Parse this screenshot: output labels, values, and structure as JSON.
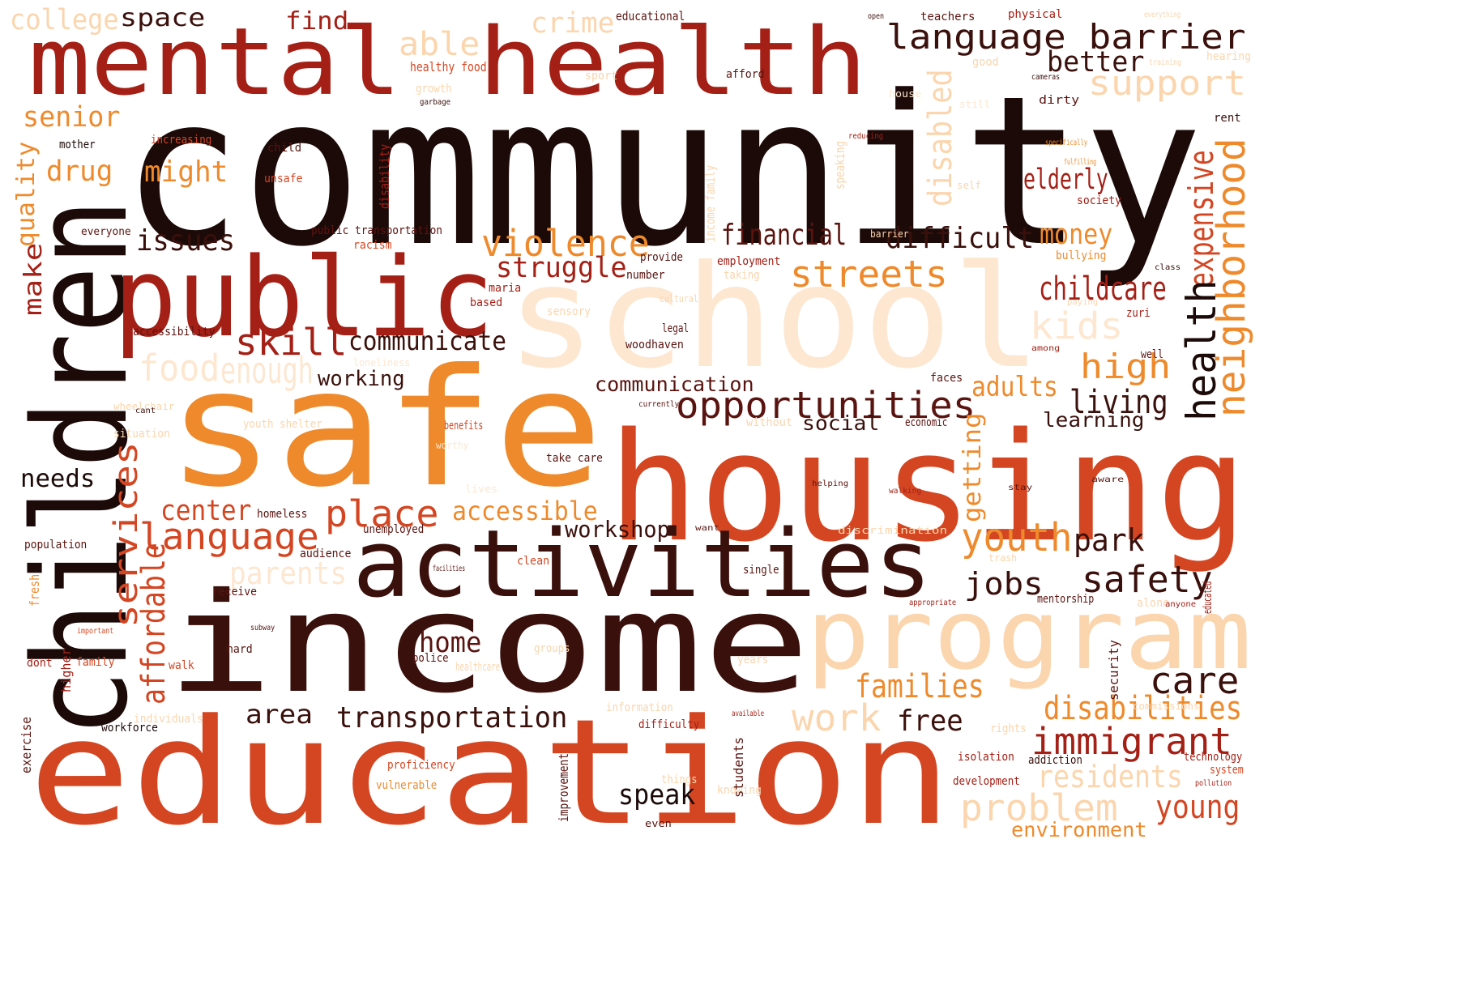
{
  "palette": {
    "dark": "#1c0a08",
    "maroon": "#5a1410",
    "red": "#a42016",
    "red_orange": "#d44622",
    "orange": "#ee8a2c",
    "peach": "#fbd5ad",
    "pale": "#fde7d0"
  },
  "words": [
    {
      "text": "community",
      "color": "#1c0a08"
    },
    {
      "text": "mental",
      "color": "#a42016"
    },
    {
      "text": "health",
      "color": "#a42016"
    },
    {
      "text": "children",
      "color": "#1c0a08"
    },
    {
      "text": "public",
      "color": "#a42016"
    },
    {
      "text": "school",
      "color": "#fde7d0"
    },
    {
      "text": "safe",
      "color": "#ee8a2c"
    },
    {
      "text": "housing",
      "color": "#d44622"
    },
    {
      "text": "activities",
      "color": "#3a100c"
    },
    {
      "text": "income",
      "color": "#3a100c"
    },
    {
      "text": "program",
      "color": "#fbd5ad"
    },
    {
      "text": "education",
      "color": "#d44622"
    },
    {
      "text": "college",
      "color": "#fbd5ad"
    },
    {
      "text": "space",
      "color": "#3a100c"
    },
    {
      "text": "find",
      "color": "#a42016"
    },
    {
      "text": "able",
      "color": "#fbd5ad"
    },
    {
      "text": "crime",
      "color": "#fbd5ad"
    },
    {
      "text": "language barrier",
      "color": "#3a100c"
    },
    {
      "text": "better",
      "color": "#3a100c"
    },
    {
      "text": "support",
      "color": "#fbd5ad"
    },
    {
      "text": "senior",
      "color": "#ee8a2c"
    },
    {
      "text": "drug",
      "color": "#ee8a2c"
    },
    {
      "text": "might",
      "color": "#ee8a2c"
    },
    {
      "text": "quality",
      "color": "#ee8a2c"
    },
    {
      "text": "make",
      "color": "#a42016"
    },
    {
      "text": "issues",
      "color": "#3a100c"
    },
    {
      "text": "violence",
      "color": "#ee8a2c"
    },
    {
      "text": "financial",
      "color": "#5a1410"
    },
    {
      "text": "difficult",
      "color": "#3a100c"
    },
    {
      "text": "money",
      "color": "#ee8a2c"
    },
    {
      "text": "disabled",
      "color": "#fbd5ad"
    },
    {
      "text": "elderly",
      "color": "#a42016"
    },
    {
      "text": "expensive",
      "color": "#d44622"
    },
    {
      "text": "neighborhood",
      "color": "#ee8a2c"
    },
    {
      "text": "health",
      "color": "#1c0a08"
    },
    {
      "text": "struggle",
      "color": "#a42016"
    },
    {
      "text": "streets",
      "color": "#ee8a2c"
    },
    {
      "text": "childcare",
      "color": "#a42016"
    },
    {
      "text": "kids",
      "color": "#fde7d0"
    },
    {
      "text": "skill",
      "color": "#a42016"
    },
    {
      "text": "communicate",
      "color": "#3a100c"
    },
    {
      "text": "food",
      "color": "#fde7d0"
    },
    {
      "text": "enough",
      "color": "#fde7d0"
    },
    {
      "text": "working",
      "color": "#3a100c"
    },
    {
      "text": "communication",
      "color": "#5a1410"
    },
    {
      "text": "opportunities",
      "color": "#5a1410"
    },
    {
      "text": "high",
      "color": "#ee8a2c"
    },
    {
      "text": "adults",
      "color": "#ee8a2c"
    },
    {
      "text": "living",
      "color": "#3a100c"
    },
    {
      "text": "learning",
      "color": "#3a100c"
    },
    {
      "text": "social",
      "color": "#3a100c"
    },
    {
      "text": "getting",
      "color": "#ee8a2c"
    },
    {
      "text": "services",
      "color": "#d44622"
    },
    {
      "text": "needs",
      "color": "#1c0a08"
    },
    {
      "text": "center",
      "color": "#d44622"
    },
    {
      "text": "place",
      "color": "#d44622"
    },
    {
      "text": "accessible",
      "color": "#ee8a2c"
    },
    {
      "text": "language",
      "color": "#d44622"
    },
    {
      "text": "workshop",
      "color": "#3a100c"
    },
    {
      "text": "youth",
      "color": "#ee8a2c"
    },
    {
      "text": "park",
      "color": "#3a100c"
    },
    {
      "text": "parents",
      "color": "#fde7d0"
    },
    {
      "text": "affordable",
      "color": "#d44622"
    },
    {
      "text": "jobs",
      "color": "#3a100c"
    },
    {
      "text": "safety",
      "color": "#3a100c"
    },
    {
      "text": "home",
      "color": "#5a1410"
    },
    {
      "text": "care",
      "color": "#3a100c"
    },
    {
      "text": "families",
      "color": "#ee8a2c"
    },
    {
      "text": "disabilities",
      "color": "#ee8a2c"
    },
    {
      "text": "area",
      "color": "#3a100c"
    },
    {
      "text": "transportation",
      "color": "#3a100c"
    },
    {
      "text": "work",
      "color": "#fbd5ad"
    },
    {
      "text": "free",
      "color": "#3a100c"
    },
    {
      "text": "immigrant",
      "color": "#a42016"
    },
    {
      "text": "residents",
      "color": "#fbd5ad"
    },
    {
      "text": "speak",
      "color": "#1c0a08"
    },
    {
      "text": "problem",
      "color": "#fbd5ad"
    },
    {
      "text": "young",
      "color": "#d44622"
    },
    {
      "text": "environment",
      "color": "#ee8a2c"
    },
    {
      "text": "educational",
      "color": "#5a1410"
    },
    {
      "text": "healthy food",
      "color": "#d44622"
    },
    {
      "text": "sport",
      "color": "#fbd5ad"
    },
    {
      "text": "growth",
      "color": "#fbd5ad"
    },
    {
      "text": "afford",
      "color": "#5a1410"
    },
    {
      "text": "teachers",
      "color": "#5a1410"
    },
    {
      "text": "physical",
      "color": "#a42016"
    },
    {
      "text": "good",
      "color": "#fbd5ad"
    },
    {
      "text": "hearing",
      "color": "#fbd5ad"
    },
    {
      "text": "dirty",
      "color": "#5a1410"
    },
    {
      "text": "rent",
      "color": "#3a100c"
    },
    {
      "text": "mother",
      "color": "#1c0a08"
    },
    {
      "text": "increasing",
      "color": "#d44622"
    },
    {
      "text": "child",
      "color": "#5a1410"
    },
    {
      "text": "unsafe",
      "color": "#d44622"
    },
    {
      "text": "everyone",
      "color": "#5a1410"
    },
    {
      "text": "public transportation",
      "color": "#5a1410"
    },
    {
      "text": "racism",
      "color": "#d44622"
    },
    {
      "text": "disability",
      "color": "#a42016"
    },
    {
      "text": "income family",
      "color": "#fbd5ad"
    },
    {
      "text": "speaking",
      "color": "#fbd5ad"
    },
    {
      "text": "employment",
      "color": "#a42016"
    },
    {
      "text": "provide",
      "color": "#5a1410"
    },
    {
      "text": "number",
      "color": "#5a1410"
    },
    {
      "text": "taking",
      "color": "#fbd5ad"
    },
    {
      "text": "bullying",
      "color": "#ee8a2c"
    },
    {
      "text": "society",
      "color": "#a42016"
    },
    {
      "text": "accessibility",
      "color": "#5a1410"
    },
    {
      "text": "maria",
      "color": "#a42016"
    },
    {
      "text": "based",
      "color": "#a42016"
    },
    {
      "text": "sensory",
      "color": "#fbd5ad"
    },
    {
      "text": "legal",
      "color": "#5a1410"
    },
    {
      "text": "woodhaven",
      "color": "#5a1410"
    },
    {
      "text": "zuri",
      "color": "#a42016"
    },
    {
      "text": "well",
      "color": "#5a1410"
    },
    {
      "text": "faces",
      "color": "#5a1410"
    },
    {
      "text": "youth shelter",
      "color": "#fbd5ad"
    },
    {
      "text": "benefits",
      "color": "#d44622"
    },
    {
      "text": "without",
      "color": "#fbd5ad"
    },
    {
      "text": "economic",
      "color": "#5a1410"
    },
    {
      "text": "situation",
      "color": "#fbd5ad"
    },
    {
      "text": "take care",
      "color": "#5a1410"
    },
    {
      "text": "homeless",
      "color": "#5a1410"
    },
    {
      "text": "population",
      "color": "#5a1410"
    },
    {
      "text": "unemployed",
      "color": "#5a1410"
    },
    {
      "text": "audience",
      "color": "#5a1410"
    },
    {
      "text": "clean",
      "color": "#d44622"
    },
    {
      "text": "single",
      "color": "#5a1410"
    },
    {
      "text": "receive",
      "color": "#5a1410"
    },
    {
      "text": "hard",
      "color": "#5a1410"
    },
    {
      "text": "police",
      "color": "#5a1410"
    },
    {
      "text": "groups",
      "color": "#fbd5ad"
    },
    {
      "text": "healthcare",
      "color": "#fbd5ad"
    },
    {
      "text": "dont",
      "color": "#a42016"
    },
    {
      "text": "family",
      "color": "#d44622"
    },
    {
      "text": "walk",
      "color": "#d44622"
    },
    {
      "text": "years",
      "color": "#fbd5ad"
    },
    {
      "text": "individuals",
      "color": "#fbd5ad"
    },
    {
      "text": "workforce",
      "color": "#1c0a08"
    },
    {
      "text": "difficulty",
      "color": "#a42016"
    },
    {
      "text": "information",
      "color": "#fbd5ad"
    },
    {
      "text": "proficiency",
      "color": "#d44622"
    },
    {
      "text": "vulnerable",
      "color": "#ee8a2c"
    },
    {
      "text": "things",
      "color": "#fbd5ad"
    },
    {
      "text": "knowing",
      "color": "#fbd5ad"
    },
    {
      "text": "students",
      "color": "#5a1410"
    },
    {
      "text": "improvement",
      "color": "#5a1410"
    },
    {
      "text": "rights",
      "color": "#fbd5ad"
    },
    {
      "text": "isolation",
      "color": "#a42016"
    },
    {
      "text": "addiction",
      "color": "#3a100c"
    },
    {
      "text": "development",
      "color": "#a42016"
    },
    {
      "text": "technology",
      "color": "#a42016"
    },
    {
      "text": "system",
      "color": "#d44622"
    },
    {
      "text": "mentorship",
      "color": "#5a1410"
    },
    {
      "text": "alone",
      "color": "#fbd5ad"
    },
    {
      "text": "security",
      "color": "#5a1410"
    },
    {
      "text": "exercise",
      "color": "#5a1410"
    },
    {
      "text": "higher",
      "color": "#a42016"
    },
    {
      "text": "fresh",
      "color": "#ee8a2c"
    },
    {
      "text": "wheelchair",
      "color": "#fbd5ad"
    },
    {
      "text": "loneliness",
      "color": "#fde7d0"
    },
    {
      "text": "training",
      "color": "#fbd5ad"
    },
    {
      "text": "everything",
      "color": "#fbd5ad"
    },
    {
      "text": "garbage",
      "color": "#3a100c"
    },
    {
      "text": "cameras",
      "color": "#3a100c"
    },
    {
      "text": "still",
      "color": "#fde7d0"
    },
    {
      "text": "house",
      "color": "#fde7d0"
    },
    {
      "text": "reducing",
      "color": "#a42016"
    },
    {
      "text": "specifically",
      "color": "#ee8a2c"
    },
    {
      "text": "fulfilling",
      "color": "#ee8a2c"
    },
    {
      "text": "self",
      "color": "#fbd5ad"
    },
    {
      "text": "class",
      "color": "#3a100c"
    },
    {
      "text": "paying",
      "color": "#fbd5ad"
    },
    {
      "text": "among",
      "color": "#a42016"
    },
    {
      "text": "cultural",
      "color": "#fbd5ad"
    },
    {
      "text": "currently",
      "color": "#5a1410"
    },
    {
      "text": "cant",
      "color": "#3a100c"
    },
    {
      "text": "worthy",
      "color": "#fde7d0"
    },
    {
      "text": "lives",
      "color": "#fde7d0"
    },
    {
      "text": "helping",
      "color": "#5a1410"
    },
    {
      "text": "walking",
      "color": "#a42016"
    },
    {
      "text": "stay",
      "color": "#5a1410"
    },
    {
      "text": "aware",
      "color": "#5a1410"
    },
    {
      "text": "discrimination",
      "color": "#fbd5ad"
    },
    {
      "text": "want",
      "color": "#5a1410"
    },
    {
      "text": "trash",
      "color": "#fbd5ad"
    },
    {
      "text": "facilities",
      "color": "#5a1410"
    },
    {
      "text": "appropriate",
      "color": "#a42016"
    },
    {
      "text": "anyone",
      "color": "#a42016"
    },
    {
      "text": "educated",
      "color": "#a42016"
    },
    {
      "text": "important",
      "color": "#d44622"
    },
    {
      "text": "subway",
      "color": "#5a1410"
    },
    {
      "text": "available",
      "color": "#a42016"
    },
    {
      "text": "commissions",
      "color": "#fbd5ad"
    },
    {
      "text": "pollution",
      "color": "#a42016"
    },
    {
      "text": "barrier",
      "color": "#fbd5ad"
    },
    {
      "text": "open",
      "color": "#3a100c"
    },
    {
      "text": "even",
      "color": "#5a1410"
    }
  ]
}
